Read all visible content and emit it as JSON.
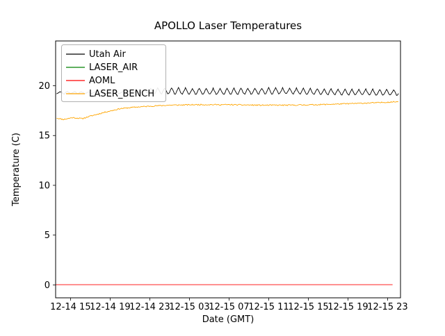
{
  "figure": {
    "title": "APOLLO Laser Temperatures"
  },
  "chart_data": {
    "type": "line",
    "title": "APOLLO Laser Temperatures",
    "xlabel": "Date (GMT)",
    "ylabel": "Temperature (C)",
    "x_unit": "hours since 12-14 00:00 GMT",
    "xlim": [
      13.5,
      48.3
    ],
    "ylim": [
      -1.3,
      24.5
    ],
    "grid": false,
    "legend_position": "upper left",
    "y_ticks": [
      0,
      5,
      10,
      15,
      20
    ],
    "y_ticklabels": [
      "0",
      "5",
      "10",
      "15",
      "20"
    ],
    "x_ticks": [
      15,
      19,
      23,
      27,
      31,
      35,
      39,
      43,
      47
    ],
    "x_ticklabels": [
      "12-14 15",
      "12-14 19",
      "12-14 23",
      "12-15 03",
      "12-15 07",
      "12-15 11",
      "12-15 15",
      "12-15 19",
      "12-15 23"
    ],
    "series": [
      {
        "name": "Utah Air",
        "color": "#000000",
        "seed": 7,
        "step_h": 0.1,
        "start_h": 13.6,
        "end_h": 48.1,
        "jitter": 0.05,
        "keypoints": [
          [
            13.6,
            19.3
          ],
          [
            20,
            19.3
          ],
          [
            23,
            19.45
          ],
          [
            30,
            19.4
          ],
          [
            36,
            19.45
          ],
          [
            42,
            19.35
          ],
          [
            48.1,
            19.3
          ]
        ],
        "osc": {
          "period_h": 0.7,
          "amp_points": [
            [
              13.6,
              0.12
            ],
            [
              22.5,
              0.12
            ],
            [
              23.5,
              0.35
            ],
            [
              48.1,
              0.32
            ]
          ]
        }
      },
      {
        "name": "LASER_AIR",
        "color": "#008000",
        "seed": 5,
        "keypoints": []
      },
      {
        "name": "AOML",
        "color": "#ff0000",
        "seed": 3,
        "step_h": 1.0,
        "start_h": 13.5,
        "end_h": 48.3,
        "jitter": 0,
        "keypoints": [
          [
            13.5,
            0.02
          ],
          [
            48.3,
            0.02
          ]
        ]
      },
      {
        "name": "LASER_BENCH",
        "color": "#ffa500",
        "seed": 11,
        "step_h": 0.08,
        "start_h": 13.6,
        "end_h": 48.1,
        "jitter": 0.055,
        "keypoints": [
          [
            13.6,
            16.75
          ],
          [
            14.3,
            16.62
          ],
          [
            15.2,
            16.8
          ],
          [
            16.2,
            16.7
          ],
          [
            17.0,
            16.95
          ],
          [
            18.5,
            17.35
          ],
          [
            20.0,
            17.7
          ],
          [
            21.5,
            17.85
          ],
          [
            23.0,
            17.95
          ],
          [
            25.0,
            18.05
          ],
          [
            28.0,
            18.1
          ],
          [
            31.0,
            18.1
          ],
          [
            34.0,
            18.05
          ],
          [
            37.0,
            18.05
          ],
          [
            40.0,
            18.1
          ],
          [
            43.0,
            18.2
          ],
          [
            46.0,
            18.3
          ],
          [
            48.1,
            18.4
          ]
        ]
      }
    ]
  }
}
